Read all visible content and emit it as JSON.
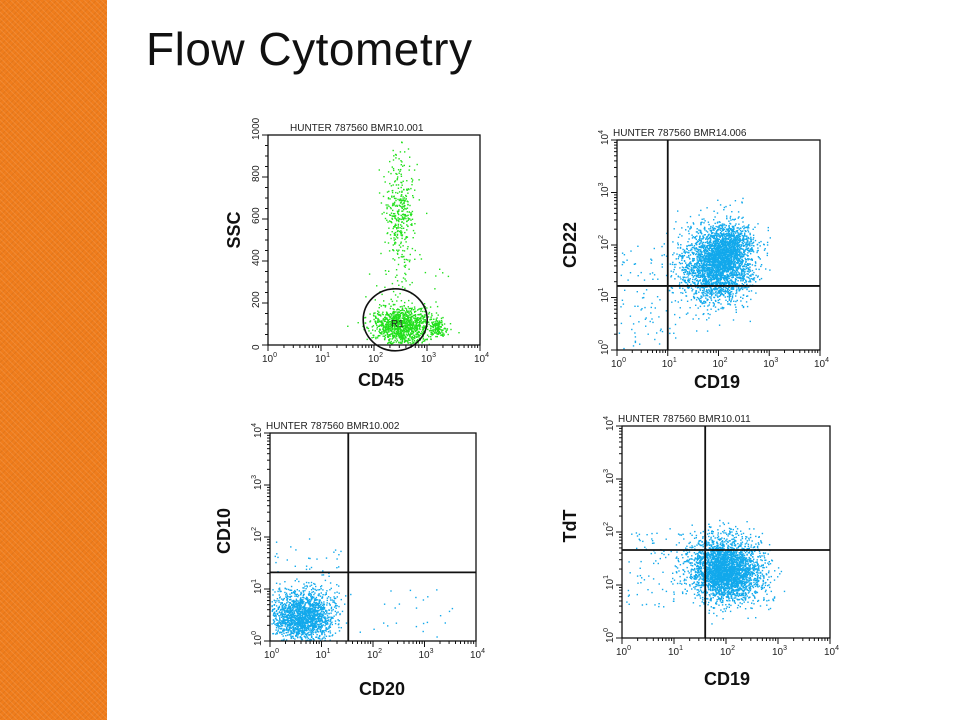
{
  "slide": {
    "title": "Flow Cytometry",
    "accent_color": "#f07d1c"
  },
  "plots": [
    {
      "id": "p1",
      "title": "HUNTER 787560 BMR10.001",
      "xlabel": "CD45",
      "ylabel": "SSC",
      "x_ticks": [
        "0",
        "1",
        "2",
        "3",
        "4"
      ],
      "y_ticks": [
        "0",
        "200",
        "400",
        "600",
        "800",
        "1000"
      ],
      "gate_label": "R1",
      "dot_color": "#22e01c"
    },
    {
      "id": "p2",
      "title": "HUNTER 787560 BMR14.006",
      "xlabel": "CD19",
      "ylabel": "CD22",
      "x_ticks": [
        "0",
        "1",
        "2",
        "3",
        "4"
      ],
      "y_ticks": [
        "0",
        "1",
        "2",
        "3",
        "4"
      ],
      "dot_color": "#12a9ec"
    },
    {
      "id": "p3",
      "title": "HUNTER 787560 BMR10.002",
      "xlabel": "CD20",
      "ylabel": "CD10",
      "x_ticks": [
        "0",
        "1",
        "2",
        "3",
        "4"
      ],
      "y_ticks": [
        "0",
        "1",
        "2",
        "3",
        "4"
      ],
      "dot_color": "#12a9ec"
    },
    {
      "id": "p4",
      "title": "HUNTER 787560 BMR10.011",
      "xlabel": "CD19",
      "ylabel": "TdT",
      "x_ticks": [
        "0",
        "1",
        "2",
        "3",
        "4"
      ],
      "y_ticks": [
        "0",
        "1",
        "2",
        "3",
        "4"
      ],
      "dot_color": "#12a9ec"
    }
  ]
}
